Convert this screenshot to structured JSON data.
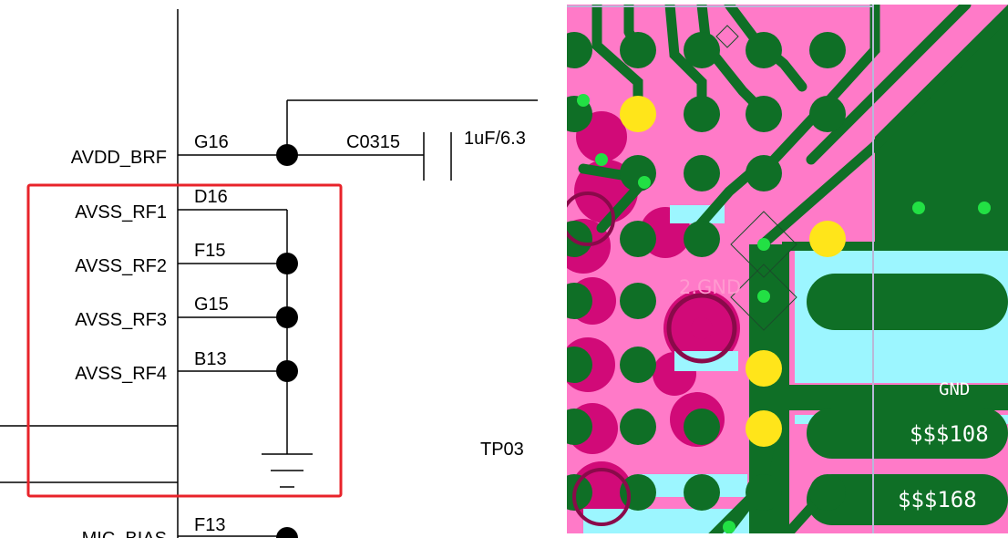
{
  "schematic": {
    "net_labels": [
      "AVDD_BRF",
      "AVSS_RF1",
      "AVSS_RF2",
      "AVSS_RF3",
      "AVSS_RF4",
      "MIC_BIAS"
    ],
    "pin_labels": [
      "G16",
      "D16",
      "F15",
      "G15",
      "B13",
      "F13"
    ],
    "capacitor": {
      "ref": "C0315",
      "value": "1uF/6.3"
    },
    "testpoint": "TP03",
    "highlight_color": "#e8232a"
  },
  "pcb": {
    "colors": {
      "background": "#ff7ac8",
      "trace": "#0f6f26",
      "pad_yellow": "#ffe51a",
      "via_center": "#22e044",
      "fill_cyan": "#9cf6ff",
      "copper_dark": "#d10a78"
    },
    "pad_label": "2.GND",
    "net_labels": [
      "GND",
      "$$$108",
      "$$$168"
    ]
  }
}
